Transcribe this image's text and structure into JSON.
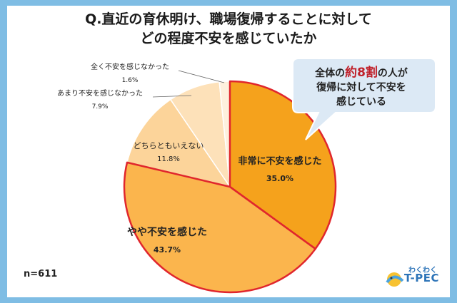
{
  "title": {
    "line1": "Q.直近の育休明け、職場復帰することに対して",
    "line2": "どの程度不安を感じていたか"
  },
  "callout": {
    "pre": "全体の",
    "highlight": "約8割",
    "post": "の人が",
    "line2": "復帰に対して不安を",
    "line3": "感じている"
  },
  "sample_size": "n=611",
  "logo": {
    "small": "わくわく",
    "big": "T-PEC"
  },
  "chart_data": {
    "type": "pie",
    "slices": [
      {
        "label": "非常に不安を感じた",
        "value": 35.0,
        "display": "35.0%",
        "color": "#f5a21c"
      },
      {
        "label": "やや不安を感じた",
        "value": 43.7,
        "display": "43.7%",
        "color": "#fbb54d"
      },
      {
        "label": "どちらともいえない",
        "value": 11.8,
        "display": "11.8%",
        "color": "#fcd49a"
      },
      {
        "label": "あまり不安を感じなかった",
        "value": 7.9,
        "display": "7.9%",
        "color": "#fde1b9"
      },
      {
        "label": "全く不安を感じなかった",
        "value": 1.6,
        "display": "1.6%",
        "color": "#fef0dd"
      }
    ],
    "highlighted_slices": [
      "非常に不安を感じた",
      "やや不安を感じた"
    ],
    "highlight_color": "#e0262d"
  }
}
